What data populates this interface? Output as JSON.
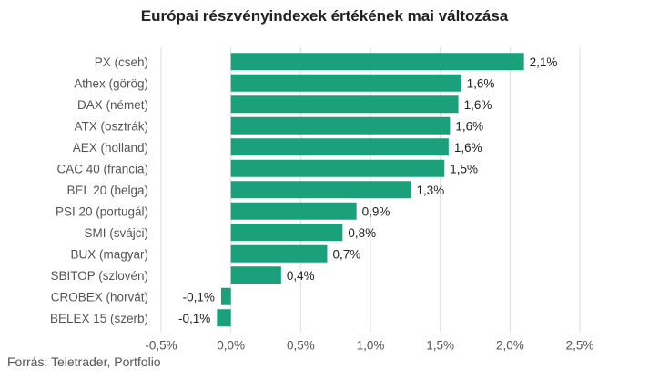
{
  "chart_data": {
    "type": "bar",
    "orientation": "horizontal",
    "title": "Európai részvényindexek értékének mai változása",
    "categories": [
      "PX (cseh)",
      "Athex (görög)",
      "DAX (német)",
      "ATX (osztrák)",
      "AEX (holland)",
      "CAC 40 (francia)",
      "BEL 20 (belga)",
      "PSI 20 (portugál)",
      "SMI (svájci)",
      "BUX (magyar)",
      "SBITOP (szlovén)",
      "CROBEX (horvát)",
      "BELEX 15 (szerb)"
    ],
    "values": [
      2.1,
      1.65,
      1.63,
      1.57,
      1.56,
      1.53,
      1.29,
      0.9,
      0.8,
      0.69,
      0.36,
      -0.07,
      -0.1
    ],
    "value_labels": [
      "2,1%",
      "1,6%",
      "1,6%",
      "1,6%",
      "1,6%",
      "1,5%",
      "1,3%",
      "0,9%",
      "0,8%",
      "0,7%",
      "0,4%",
      "-0,1%",
      "-0,1%"
    ],
    "xlim": [
      -0.5,
      2.5
    ],
    "xticks": [
      -0.5,
      0,
      0.5,
      1.0,
      1.5,
      2.0,
      2.5
    ],
    "xtick_labels": [
      "-0,5%",
      "0,0%",
      "0,5%",
      "1,0%",
      "1,5%",
      "2,0%",
      "2,5%"
    ],
    "xlabel": "",
    "ylabel": "",
    "grid": "vertical",
    "legend": "none",
    "bar_color": "#1aa07b"
  },
  "source": "Forrás: Teletrader, Portfolio"
}
